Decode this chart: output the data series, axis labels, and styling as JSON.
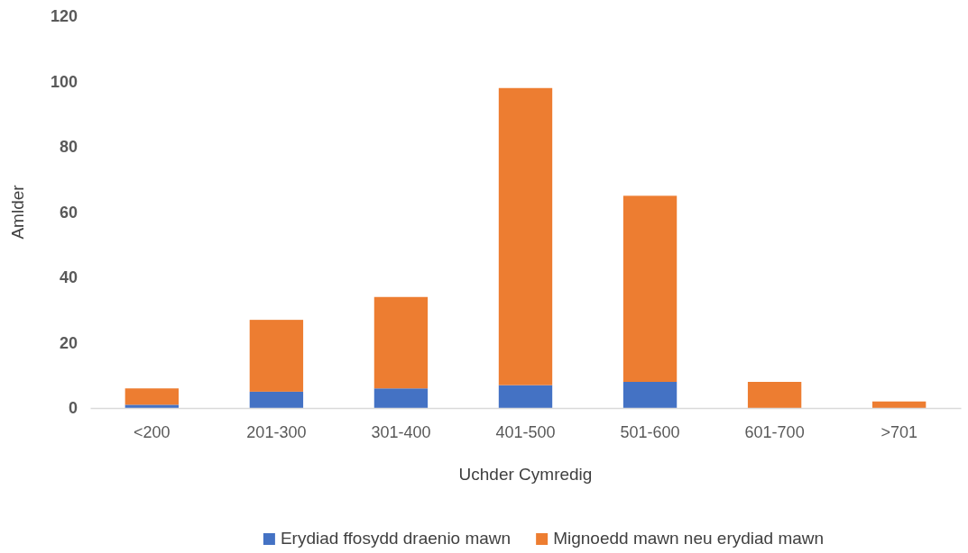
{
  "chart_data": {
    "type": "bar",
    "stacked": true,
    "xlabel": "Uchder Cymredig",
    "ylabel": "Amlder",
    "categories": [
      "<200",
      "201-300",
      "301-400",
      "401-500",
      "501-600",
      "601-700",
      ">701"
    ],
    "series": [
      {
        "name": "Erydiad ffosydd draenio mawn",
        "color": "#4472c4",
        "values": [
          1,
          5,
          6,
          7,
          8,
          0,
          0
        ]
      },
      {
        "name": "Mignoedd mawn neu erydiad mawn",
        "color": "#ed7d31",
        "values": [
          5,
          22,
          28,
          91,
          57,
          8,
          2
        ]
      }
    ],
    "ylim": [
      0,
      120
    ],
    "yticks": [
      0,
      20,
      40,
      60,
      80,
      100,
      120
    ],
    "grid": false,
    "legend": "bottom"
  }
}
